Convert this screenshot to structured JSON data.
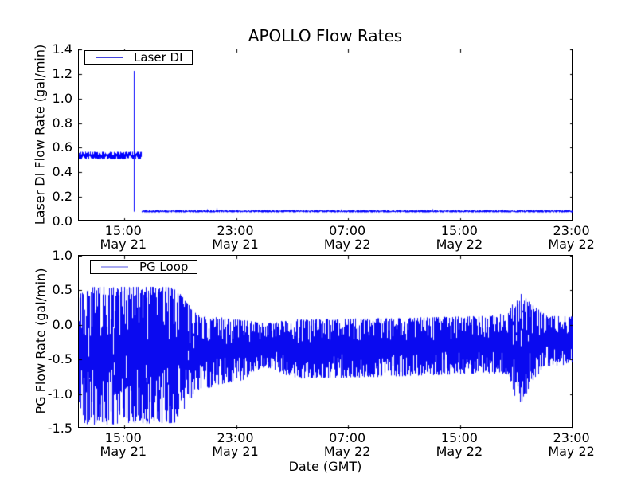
{
  "figure": {
    "title": "APOLLO Flow Rates",
    "xlabel": "Date (GMT)",
    "background": "#ffffff",
    "line_color": "#0000ff"
  },
  "plots": {
    "top": {
      "ylabel": "Laser DI Flow Rate (gal/min)",
      "legend": {
        "label": "Laser DI",
        "line_color": "#4444dd"
      },
      "ytick_labels": [
        "1.4",
        "1.2",
        "1.0",
        "0.8",
        "0.6",
        "0.4",
        "0.2",
        "0.0"
      ],
      "ylim": [
        0.0,
        1.4
      ]
    },
    "bottom": {
      "ylabel": "PG Flow Rate (gal/min)",
      "legend": {
        "label": "PG Loop",
        "line_color": "#a9aaf2"
      },
      "ytick_labels": [
        "1.0",
        "0.5",
        "0.0",
        "-0.5",
        "-1.0",
        "-1.5"
      ],
      "ylim": [
        -1.5,
        1.0
      ]
    }
  },
  "xticks": [
    {
      "hour": 15,
      "time": "15:00",
      "date": "May 21"
    },
    {
      "hour": 23,
      "time": "23:00",
      "date": "May 21"
    },
    {
      "hour": 31,
      "time": "07:00",
      "date": "May 22"
    },
    {
      "hour": 39,
      "time": "15:00",
      "date": "May 22"
    },
    {
      "hour": 47,
      "time": "23:00",
      "date": "May 22"
    }
  ],
  "chart_data": [
    {
      "type": "line",
      "name": "Laser DI",
      "color": "#0000ff",
      "x_unit": "hours since May 21 00:00 GMT",
      "xlim": [
        11.77,
        47.08
      ],
      "ylim": [
        0.0,
        1.4
      ],
      "xtick_hours": [
        15,
        23,
        31,
        39,
        47
      ],
      "ytick_values": [
        0.0,
        0.2,
        0.4,
        0.6,
        0.8,
        1.0,
        1.2,
        1.4
      ],
      "envelope": [
        [
          11.77,
          0.507,
          0.568
        ],
        [
          16.24,
          0.507,
          0.568
        ],
        [
          16.26,
          0.074,
          0.092
        ],
        [
          47.08,
          0.074,
          0.092
        ]
      ],
      "events": [
        {
          "t": 15.68,
          "lo": 0.08,
          "hi": 1.225,
          "note": "spike to 1.22"
        },
        {
          "t": 20.9,
          "lo": 0.082,
          "hi": 0.1
        },
        {
          "t": 21.6,
          "lo": 0.082,
          "hi": 0.107
        },
        {
          "t": 30.5,
          "lo": 0.082,
          "hi": 0.098
        },
        {
          "t": 37.0,
          "lo": 0.082,
          "hi": 0.1
        },
        {
          "t": 42.0,
          "lo": 0.082,
          "hi": 0.096
        }
      ],
      "ragged": 0.45,
      "seed": 42,
      "description": "Steady ~0.54 gal/min until ~16:15 May 21 (brief spike to 1.22 near 15:40), then steps down to ~0.08 gal/min for the rest of the record"
    },
    {
      "type": "line",
      "name": "PG Loop",
      "color": "#0a0af0",
      "x_unit": "hours since May 21 00:00 GMT",
      "xlim": [
        11.77,
        47.08
      ],
      "ylim": [
        -1.5,
        1.0
      ],
      "xtick_hours": [
        15,
        23,
        31,
        39,
        47
      ],
      "ytick_values": [
        -1.5,
        -1.0,
        -0.5,
        0.0,
        0.5,
        1.0
      ],
      "envelope": [
        [
          11.77,
          -1.33,
          0.42
        ],
        [
          12.3,
          -1.45,
          0.55
        ],
        [
          18.6,
          -1.42,
          0.55
        ],
        [
          20.2,
          -0.95,
          0.15
        ],
        [
          23.5,
          -0.8,
          0.07
        ],
        [
          24.8,
          -0.62,
          0.03
        ],
        [
          25.6,
          -0.63,
          0.04
        ],
        [
          27.0,
          -0.78,
          0.08
        ],
        [
          34.0,
          -0.75,
          0.1
        ],
        [
          41.0,
          -0.7,
          0.13
        ],
        [
          42.5,
          -0.72,
          0.18
        ],
        [
          42.9,
          -1.05,
          0.42
        ],
        [
          43.4,
          -1.17,
          0.45
        ],
        [
          44.1,
          -0.82,
          0.3
        ],
        [
          45.2,
          -0.6,
          0.13
        ],
        [
          47.08,
          -0.57,
          0.12
        ]
      ],
      "events": [],
      "ragged": 0.4,
      "seed": 1337,
      "description": "Dense noisy oscillation: wide band (+0.55 to -1.45) until ~20:00 May 21, then narrower band (~+0.1 to -0.75) centered near -0.3, with an excursion (+0.45 to -1.17) near 19:00-20:00 May 22"
    }
  ]
}
